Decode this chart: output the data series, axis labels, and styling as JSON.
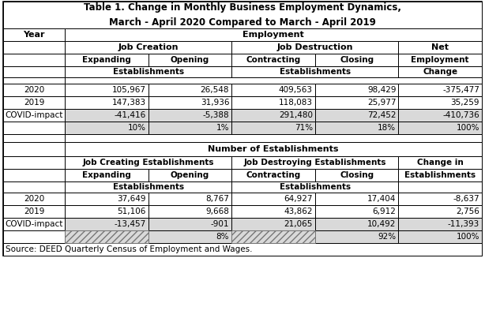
{
  "title_line1": "Table 1. Change in Monthly Business Employment Dynamics,",
  "title_line2": "March - April 2020 Compared to March - April 2019",
  "source": "Source: DEED Quarterly Census of Employment and Wages.",
  "bg_color": "#ffffff",
  "covid_bg": "#d9d9d9",
  "emp_section": {
    "rows": [
      {
        "label": "2020",
        "values": [
          "105,967",
          "26,548",
          "409,563",
          "98,429",
          "-375,477"
        ],
        "style": "normal"
      },
      {
        "label": "2019",
        "values": [
          "147,383",
          "31,936",
          "118,083",
          "25,977",
          "35,259"
        ],
        "style": "normal"
      },
      {
        "label": "COVID-impact",
        "values": [
          "-41,416",
          "-5,388",
          "291,480",
          "72,452",
          "-410,736"
        ],
        "style": "covid"
      },
      {
        "label": "",
        "values": [
          "10%",
          "1%",
          "71%",
          "18%",
          "100%"
        ],
        "style": "covid_pct"
      }
    ]
  },
  "est_section": {
    "rows": [
      {
        "label": "2020",
        "values": [
          "37,649",
          "8,767",
          "64,927",
          "17,404",
          "-8,637"
        ],
        "style": "normal"
      },
      {
        "label": "2019",
        "values": [
          "51,106",
          "9,668",
          "43,862",
          "6,912",
          "2,756"
        ],
        "style": "normal"
      },
      {
        "label": "COVID-impact",
        "values": [
          "-13,457",
          "-901",
          "21,065",
          "10,492",
          "-11,393"
        ],
        "style": "covid"
      },
      {
        "label": "",
        "values": [
          "",
          "8%",
          "",
          "92%",
          "100%"
        ],
        "style": "covid_pct_hatch"
      }
    ]
  }
}
